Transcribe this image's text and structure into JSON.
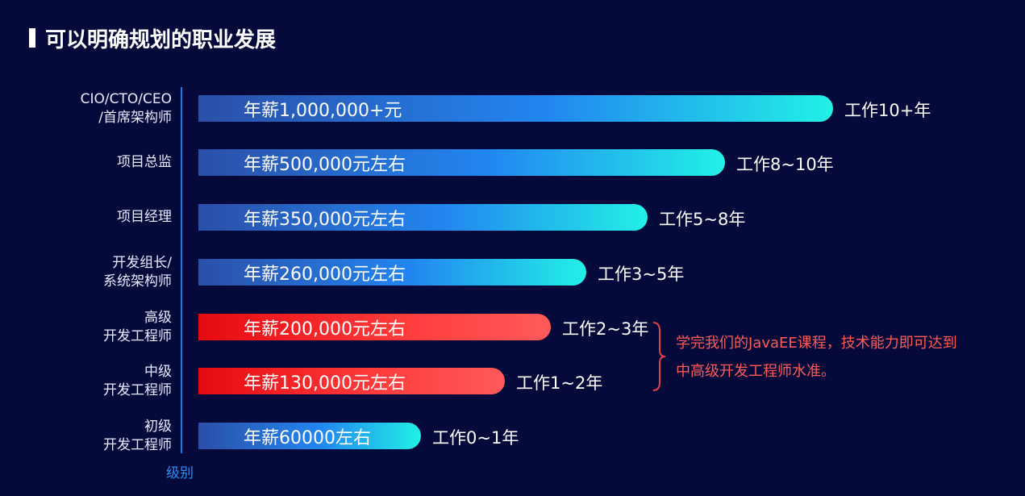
{
  "header": {
    "title": "可以明确规划的职业发展"
  },
  "chart_data": {
    "type": "bar",
    "orientation": "horizontal",
    "axis_label": "级别",
    "levels": [
      {
        "level": "CIO/CTO/CEO\n/首席架构师",
        "salary_label": "年薪1,000,000+元",
        "salary": 1000000,
        "experience": "工作10+年",
        "highlight": false
      },
      {
        "level": "项目总监",
        "salary_label": "年薪500,000元左右",
        "salary": 500000,
        "experience": "工作8~10年",
        "highlight": false
      },
      {
        "level": "项目经理",
        "salary_label": "年薪350,000元左右",
        "salary": 350000,
        "experience": "工作5~8年",
        "highlight": false
      },
      {
        "level": "开发组长/\n系统架构师",
        "salary_label": "年薪260,000元左右",
        "salary": 260000,
        "experience": "工作3~5年",
        "highlight": false
      },
      {
        "level": "高级\n开发工程师",
        "salary_label": "年薪200,000元左右",
        "salary": 200000,
        "experience": "工作2~3年",
        "highlight": true
      },
      {
        "level": "中级\n开发工程师",
        "salary_label": "年薪130,000元左右",
        "salary": 130000,
        "experience": "工作1~2年",
        "highlight": true
      },
      {
        "level": "初级\n开发工程师",
        "salary_label": "年薪60000左右",
        "salary": 60000,
        "experience": "工作0~1年",
        "highlight": false
      }
    ],
    "annotation": "学完我们的JavaEE课程，技术能力即可达到中高级开发工程师水准。",
    "colors": {
      "standard_bar": "#2286f0",
      "highlight_bar": "#ff3d3d",
      "annotation": "#ff5a57"
    }
  }
}
